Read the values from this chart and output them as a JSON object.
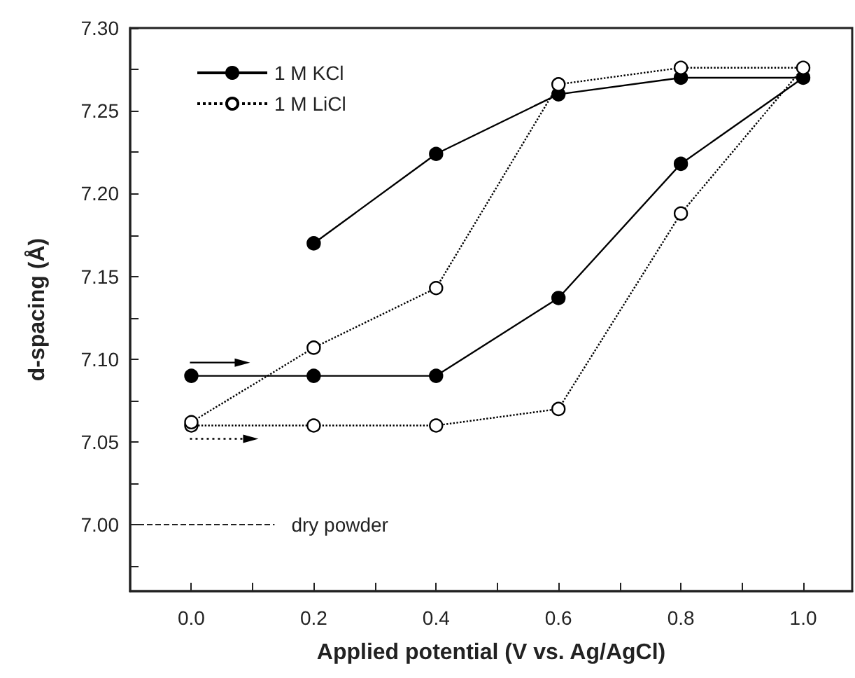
{
  "chart_data": {
    "type": "line",
    "xlabel": "Applied potential (V vs. Ag/AgCl)",
    "ylabel": "d-spacing (Å)",
    "series": [
      {
        "name": "1 M KCl",
        "color": "#000000",
        "line_style": "solid",
        "marker": "circle",
        "x": [
          0.0,
          0.2,
          0.4,
          0.6,
          0.8,
          1.0,
          0.8,
          0.6,
          0.4,
          0.2
        ],
        "values": [
          7.09,
          7.09,
          7.09,
          7.137,
          7.218,
          7.27,
          7.27,
          7.26,
          7.224,
          7.17
        ]
      },
      {
        "name": "1 M LiCl",
        "color": "#000000",
        "line_style": "dotted",
        "marker": "circle",
        "x": [
          0.0,
          0.2,
          0.4,
          0.6,
          0.8,
          1.0,
          0.8,
          0.6,
          0.4,
          0.2,
          0.0
        ],
        "values": [
          7.06,
          7.06,
          7.06,
          7.07,
          7.188,
          7.276,
          7.276,
          7.266,
          7.143,
          7.107,
          7.062
        ]
      }
    ],
    "xlim": [
      -0.1,
      1.08
    ],
    "xticks": [
      {
        "value": 0,
        "label": "0.0"
      },
      {
        "value": 0.1,
        "label": null
      },
      {
        "value": 0.2,
        "label": "0.2"
      },
      {
        "value": 0.3,
        "label": null
      },
      {
        "value": 0.4,
        "label": "0.4"
      },
      {
        "value": 0.5,
        "label": null
      },
      {
        "value": 0.6,
        "label": "0.6"
      },
      {
        "value": 0.7,
        "label": null
      },
      {
        "value": 0.8,
        "label": "0.8"
      },
      {
        "value": 0.9,
        "label": null
      },
      {
        "value": 1,
        "label": "1.0"
      }
    ],
    "ylim": [
      6.96,
      7.3
    ],
    "yticks": [
      {
        "value": 6.975,
        "label": null
      },
      {
        "value": 7,
        "label": "7.00"
      },
      {
        "value": 7.025,
        "label": null
      },
      {
        "value": 7.05,
        "label": "7.05"
      },
      {
        "value": 7.075,
        "label": null
      },
      {
        "value": 7.1,
        "label": "7.10"
      },
      {
        "value": 7.125,
        "label": null
      },
      {
        "value": 7.15,
        "label": "7.15"
      },
      {
        "value": 7.175,
        "label": null
      },
      {
        "value": 7.2,
        "label": "7.20"
      },
      {
        "value": 7.225,
        "label": null
      },
      {
        "value": 7.25,
        "label": "7.25"
      },
      {
        "value": 7.275,
        "label": null
      },
      {
        "value": 7.3,
        "label": "7.30"
      }
    ],
    "ref_lines": [
      {
        "axis": "y",
        "value": 7.0,
        "label": "dry powder",
        "line_style": "dashed"
      }
    ],
    "grid": false,
    "legend": "top left"
  }
}
